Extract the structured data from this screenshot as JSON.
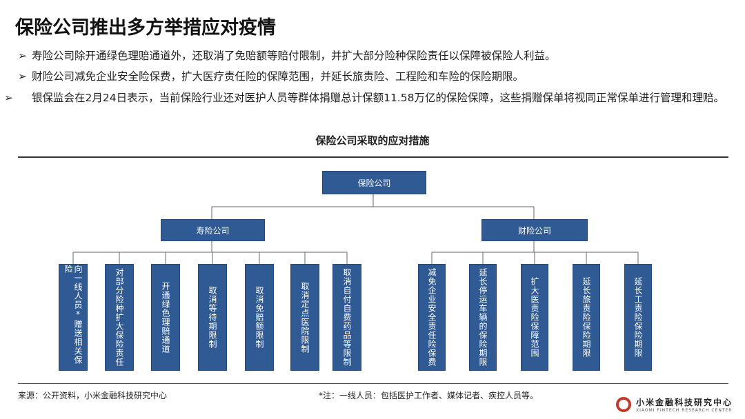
{
  "title": "保险公司推出多方举措应对疫情",
  "bullets": [
    "寿险公司除开通绿色理赔通道外，还取消了免赔额等赔付限制，并扩大部分险种保险责任以保障被保险人利益。",
    "财险公司减免企业安全险保费，扩大医疗责任险的保障范围，并延长旅责险、工程险和车险的保险期限。",
    "银保监会在2月24日表示，当前保险行业还对医护人员等群体捐赠总计保额11.58万亿的保险保障，这些捐赠保单将视同正常保单进行管理和理赔。"
  ],
  "chart_title": "保险公司采取的应对措施",
  "root": "保险公司",
  "life": {
    "label": "寿险公司",
    "items": [
      "向一线人员*赠送相关保险",
      "对部分险种扩大保险责任",
      "开通绿色理赔通道",
      "取消等待期限制",
      "取消免赔额限制",
      "取消定点医院限制",
      "取消自付自费药品等限制"
    ]
  },
  "property": {
    "label": "财险公司",
    "items": [
      "减免企业安全责任险保费",
      "延长停运车辆的保险期限",
      "扩大医责险保障范围",
      "延长旅责险保险期限",
      "延长工责险保险期限"
    ]
  },
  "source": "来源：公开资料，小米金融科技研究中心",
  "note": "*注：一线人员：包括医护工作者、媒体记者、疾控人员等。",
  "logo": {
    "cn": "小米金融科技研究中心",
    "en": "XIAOMI FINTECH RESEARCH CENTER"
  },
  "colors": {
    "box": "#2f5a94"
  }
}
